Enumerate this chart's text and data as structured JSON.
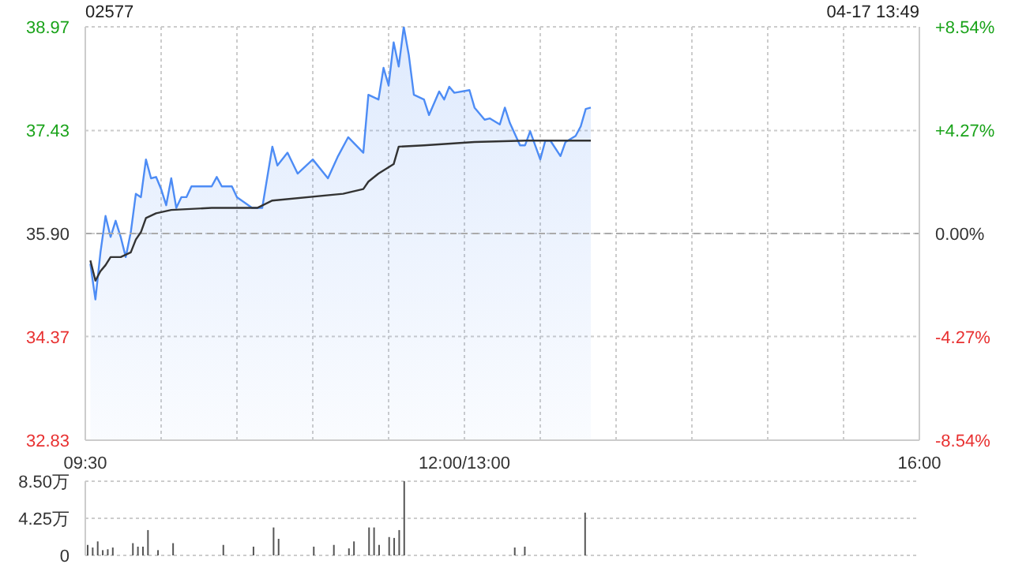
{
  "chart_data": [
    {
      "type": "line",
      "title": "02577",
      "subtitle": "04-17 13:49",
      "categories": [
        "09:30",
        null,
        null,
        null,
        null,
        null,
        null,
        null,
        null,
        null,
        null,
        null,
        null,
        null,
        null,
        null,
        null,
        null,
        null,
        null,
        null,
        null,
        null,
        null,
        null,
        null,
        null,
        null,
        null,
        null,
        null,
        null,
        null,
        null,
        null,
        null,
        null,
        null,
        null,
        null,
        null,
        null,
        null,
        null,
        null,
        null,
        null,
        null,
        null,
        null,
        null,
        null,
        null,
        null,
        null,
        null,
        null,
        null,
        null,
        null,
        null,
        null,
        null,
        null,
        null,
        null,
        null,
        null,
        null,
        null,
        null,
        null,
        null,
        null,
        null,
        "12:00/13:00",
        null,
        null,
        null,
        null,
        null,
        null,
        null,
        null,
        null,
        null,
        null,
        null,
        null,
        null,
        null,
        null,
        null,
        null,
        null,
        null,
        null,
        null,
        null,
        null,
        null,
        null,
        null,
        null,
        null,
        null,
        null,
        null,
        null,
        null,
        null,
        null,
        null,
        null,
        null,
        null,
        null,
        null,
        null,
        null,
        null,
        null,
        null,
        null,
        null,
        null,
        null,
        null,
        null,
        null,
        null,
        null,
        null,
        null,
        null,
        null,
        null,
        null,
        null,
        null,
        null,
        null,
        null,
        null,
        null,
        null,
        null,
        null,
        null,
        null,
        null,
        null,
        null,
        null,
        null,
        null,
        null,
        null,
        null,
        null,
        null,
        null,
        null,
        null,
        null,
        "16:00"
      ],
      "ylim": [
        32.83,
        38.97
      ],
      "yticks": [
        32.83,
        34.37,
        {
          "value": 35.9,
          "label": "35.90"
        },
        37.43,
        38.97
      ],
      "y2lim": [
        -8.54,
        8.54
      ],
      "y2ticks": [
        {
          "value": -8.54,
          "label": "-8.54%"
        },
        {
          "value": -4.27,
          "label": "-4.27%"
        },
        {
          "value": 0,
          "label": "0.00%"
        },
        {
          "value": 4.27,
          "label": "+4.27%"
        },
        {
          "value": 8.54,
          "label": "+8.54%"
        }
      ],
      "grid": true,
      "marker": "none",
      "ref_lines": [
        {
          "axis": "y",
          "value": 35.9,
          "line_style": "dashed",
          "color": "#aaaaaa"
        }
      ],
      "series": [
        {
          "type": "area",
          "color": "#4d8cf5",
          "values": [
            null,
            35.45,
            34.92,
            35.62,
            36.16,
            35.85,
            36.09,
            35.85,
            35.55,
            35.92,
            36.49,
            36.44,
            37.0,
            36.72,
            36.74,
            36.56,
            36.32,
            36.72,
            36.28,
            36.44,
            36.44,
            36.6,
            null,
            null,
            null,
            36.6,
            36.74,
            36.6,
            null,
            36.6,
            36.44,
            null,
            null,
            36.28,
            null,
            36.28,
            null,
            37.19,
            36.91,
            null,
            37.1,
            null,
            36.79,
            null,
            null,
            37.0,
            null,
            null,
            36.72,
            null,
            37.05,
            null,
            37.33,
            null,
            null,
            37.1,
            37.96,
            null,
            37.89,
            38.36,
            38.1,
            38.74,
            38.38,
            38.97,
            38.55,
            37.96,
            null,
            37.89,
            37.66,
            null,
            38.01,
            37.89,
            38.08,
            37.99,
            null,
            null,
            38.03,
            37.77,
            null,
            37.59,
            37.61,
            null,
            37.52,
            37.77,
            37.54,
            null,
            37.21,
            37.21,
            37.42,
            null,
            37.0,
            37.28,
            37.28,
            null,
            37.05,
            37.26,
            null,
            37.35,
            37.49,
            37.75,
            37.77,
            null,
            null,
            null,
            null,
            null,
            null,
            null,
            null,
            null,
            null,
            null,
            null,
            null,
            null,
            null,
            null,
            null,
            null,
            null,
            null,
            null,
            null,
            null,
            null,
            null,
            null,
            null,
            null,
            null,
            null,
            null,
            null,
            null,
            null,
            null,
            null,
            null,
            null,
            null,
            null,
            null,
            null,
            null,
            null,
            null,
            null,
            null,
            null,
            null,
            null,
            null,
            null,
            null,
            null,
            null,
            null,
            null,
            null,
            null,
            null,
            null,
            null,
            null,
            null,
            null
          ]
        },
        {
          "color": "#333333",
          "values": [
            null,
            35.5,
            35.2,
            35.34,
            35.43,
            35.55,
            null,
            35.55,
            null,
            35.62,
            35.81,
            35.92,
            36.13,
            null,
            36.2,
            null,
            null,
            36.25,
            null,
            null,
            null,
            null,
            null,
            null,
            null,
            36.28,
            null,
            null,
            null,
            null,
            null,
            null,
            null,
            null,
            36.28,
            null,
            null,
            36.39,
            null,
            null,
            null,
            null,
            null,
            null,
            null,
            null,
            null,
            null,
            null,
            null,
            null,
            36.49,
            null,
            null,
            null,
            36.56,
            36.67,
            null,
            36.79,
            null,
            null,
            36.93,
            37.19,
            null,
            null,
            null,
            null,
            37.21,
            null,
            null,
            null,
            null,
            null,
            null,
            null,
            null,
            null,
            37.26,
            null,
            null,
            null,
            null,
            null,
            null,
            null,
            null,
            null,
            37.28,
            null,
            null,
            null,
            null,
            null,
            null,
            null,
            null,
            null,
            null,
            null,
            null,
            37.28,
            null,
            null,
            null,
            null,
            null,
            null,
            null,
            null,
            null,
            null,
            null,
            null,
            null,
            null,
            null,
            null,
            null,
            null,
            null,
            null,
            null,
            null,
            null,
            null,
            null,
            null,
            null,
            null,
            null,
            null,
            null,
            null,
            null,
            null,
            null,
            null,
            null,
            null,
            null,
            null,
            null,
            null,
            null,
            null,
            null,
            null,
            null,
            null,
            null,
            null,
            null,
            null,
            null,
            null,
            null,
            null,
            null,
            null,
            null,
            null,
            null,
            null,
            null,
            null,
            null
          ]
        }
      ]
    },
    {
      "type": "bar",
      "categories": [
        null,
        null,
        null,
        null,
        null,
        null,
        null,
        null,
        null,
        null,
        null,
        null,
        null,
        null,
        null,
        null,
        null,
        null,
        null,
        null,
        null,
        null,
        null,
        null,
        null,
        null,
        null,
        null,
        null,
        null,
        null,
        null,
        null,
        null,
        null,
        null,
        null,
        null,
        null,
        null,
        null,
        null,
        null,
        null,
        null,
        null,
        null,
        null,
        null,
        null,
        null,
        null,
        null,
        null,
        null,
        null,
        null,
        null,
        null,
        null,
        null,
        null,
        null,
        null,
        null,
        null,
        null,
        null,
        null,
        null,
        null,
        null,
        null,
        null,
        null,
        null,
        null,
        null,
        null,
        null,
        null,
        null,
        null,
        null,
        null,
        null,
        null,
        null,
        null,
        null,
        null,
        null,
        null,
        null,
        null,
        null,
        null,
        null,
        null,
        null,
        null,
        null,
        null,
        null,
        null,
        null,
        null,
        null,
        null,
        null,
        null,
        null,
        null,
        null,
        null,
        null,
        null,
        null,
        null,
        null,
        null,
        null,
        null,
        null,
        null,
        null,
        null,
        null,
        null,
        null,
        null,
        null,
        null,
        null,
        null,
        null,
        null,
        null,
        null,
        null,
        null,
        null,
        null,
        null,
        null,
        null,
        null,
        null,
        null,
        null,
        null,
        null,
        null,
        null,
        null,
        null,
        null,
        null,
        null,
        null,
        null,
        null,
        null,
        null,
        null,
        null
      ],
      "ylim": [
        0,
        8.5
      ],
      "yticks": [
        {
          "value": 0,
          "label": "0"
        },
        {
          "value": 4.25,
          "label": "4.25万"
        },
        {
          "value": 8.5,
          "label": "8.50万"
        }
      ],
      "grid": "y",
      "tick_labels": "y",
      "series": [
        {
          "color": "#555555",
          "values": [
            1.2,
            0.9,
            1.6,
            0.6,
            0.7,
            0.9,
            null,
            null,
            null,
            1.4,
            1.0,
            1.0,
            2.9,
            null,
            0.6,
            null,
            null,
            1.4,
            null,
            null,
            null,
            null,
            null,
            null,
            null,
            null,
            null,
            1.2,
            null,
            null,
            null,
            null,
            null,
            1.0,
            null,
            null,
            null,
            3.2,
            1.9,
            null,
            null,
            null,
            null,
            null,
            null,
            1.0,
            null,
            null,
            null,
            1.2,
            null,
            null,
            0.8,
            1.6,
            null,
            null,
            3.2,
            3.2,
            1.2,
            null,
            2.1,
            2.0,
            2.9,
            8.5,
            null,
            null,
            null,
            null,
            null,
            null,
            null,
            null,
            null,
            null,
            null,
            null,
            null,
            null,
            null,
            null,
            null,
            null,
            null,
            null,
            null,
            0.9,
            null,
            1.0,
            null,
            null,
            null,
            null,
            null,
            null,
            null,
            null,
            null,
            null,
            null,
            4.9,
            null,
            null,
            null,
            null,
            null,
            null,
            null,
            null,
            null,
            null,
            null,
            null,
            null,
            null,
            null,
            null,
            null,
            null,
            null,
            null,
            null,
            null,
            null,
            null,
            null,
            null,
            null,
            null,
            null,
            null,
            null,
            null,
            null,
            null,
            null,
            null,
            null,
            null,
            null,
            null,
            null,
            null,
            null,
            null,
            null,
            null,
            null,
            null,
            null,
            null,
            null,
            null,
            null,
            null,
            null,
            null,
            null,
            null,
            null,
            null,
            null,
            null,
            null,
            null,
            null,
            null
          ]
        }
      ]
    }
  ]
}
